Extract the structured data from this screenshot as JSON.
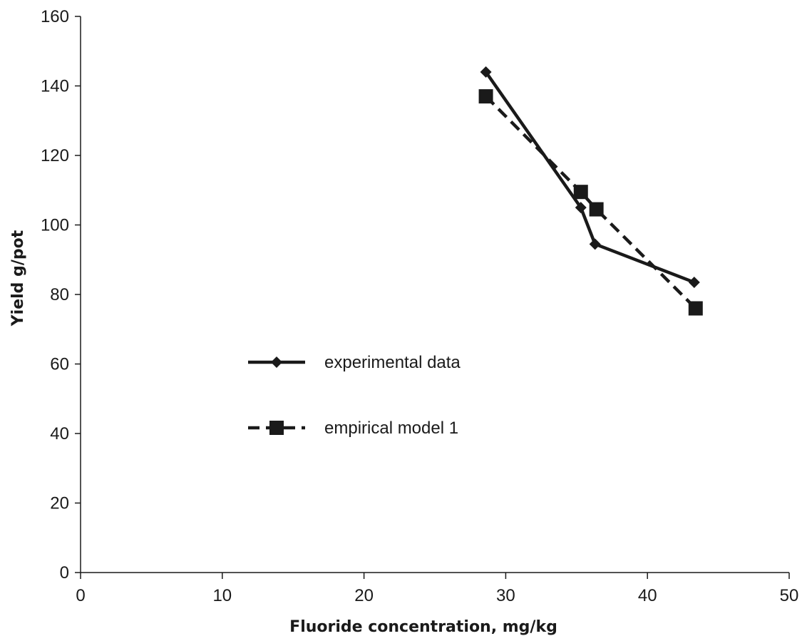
{
  "chart_data": {
    "type": "line",
    "title": "",
    "xlabel": "Fluoride concentration, mg/kg",
    "ylabel": "Yield g/pot",
    "xlim": [
      0,
      50
    ],
    "ylim": [
      0,
      160
    ],
    "x_ticks": [
      0,
      10,
      20,
      30,
      40,
      50
    ],
    "y_ticks": [
      0,
      20,
      40,
      60,
      80,
      100,
      120,
      140,
      160
    ],
    "grid": false,
    "legend_position": "center-left",
    "series": [
      {
        "name": "experimental data",
        "line_style": "solid",
        "marker": "diamond",
        "color": "#1a1a1a",
        "x": [
          28.6,
          35.3,
          36.3,
          43.3
        ],
        "y": [
          144,
          105,
          94.5,
          83.5
        ]
      },
      {
        "name": "empirical model 1",
        "line_style": "dashed",
        "marker": "square",
        "color": "#1a1a1a",
        "x": [
          28.6,
          35.3,
          36.4,
          43.4
        ],
        "y": [
          137,
          109.5,
          104.5,
          76
        ]
      }
    ]
  }
}
